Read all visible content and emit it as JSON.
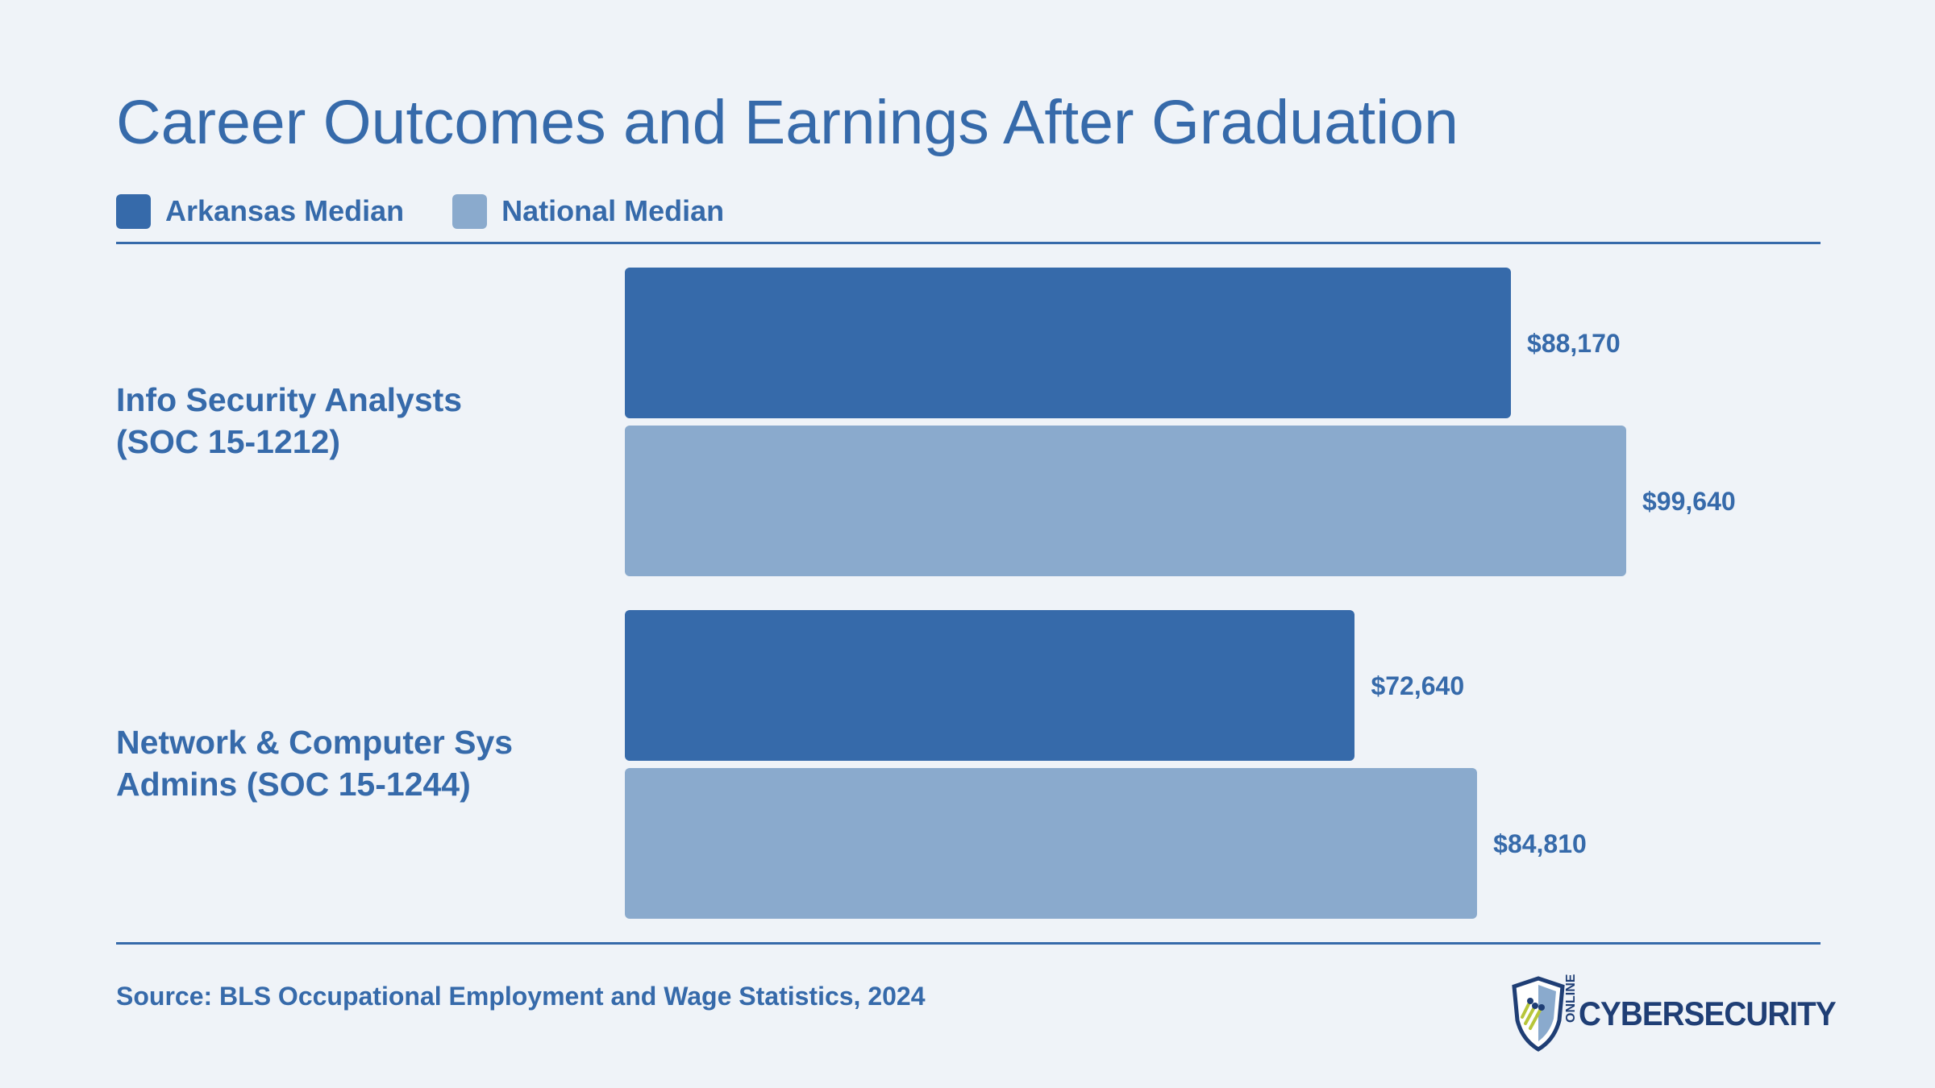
{
  "title": "Career Outcomes and Earnings After Graduation",
  "legend": [
    {
      "label": "Arkansas Median",
      "color": "#366aaa"
    },
    {
      "label": "National Median",
      "color": "#8aaacd"
    }
  ],
  "source": "Source: BLS Occupational Employment and Wage Statistics, 2024",
  "logo": {
    "small": "ONLINE",
    "word": "CYBERSECURITY",
    "icon": "shield-circuit-logo-icon"
  },
  "chart_data": {
    "type": "bar",
    "orientation": "horizontal",
    "title": "Career Outcomes and Earnings After Graduation",
    "categories": [
      {
        "line1": "Info Security Analysts",
        "line2": "(SOC 15-1212)"
      },
      {
        "line1": "Network & Computer Sys",
        "line2": "Admins (SOC 15-1244)"
      }
    ],
    "series": [
      {
        "name": "Arkansas Median",
        "color": "#366aaa",
        "values": [
          88170,
          72640
        ],
        "labels": [
          "$88,170",
          "$72,640"
        ]
      },
      {
        "name": "National Median",
        "color": "#8aaacd",
        "values": [
          99640,
          84810
        ],
        "labels": [
          "$99,640",
          "$84,810"
        ]
      }
    ],
    "xlim": [
      0,
      110000
    ],
    "grid": false,
    "legend_position": "top-left"
  }
}
